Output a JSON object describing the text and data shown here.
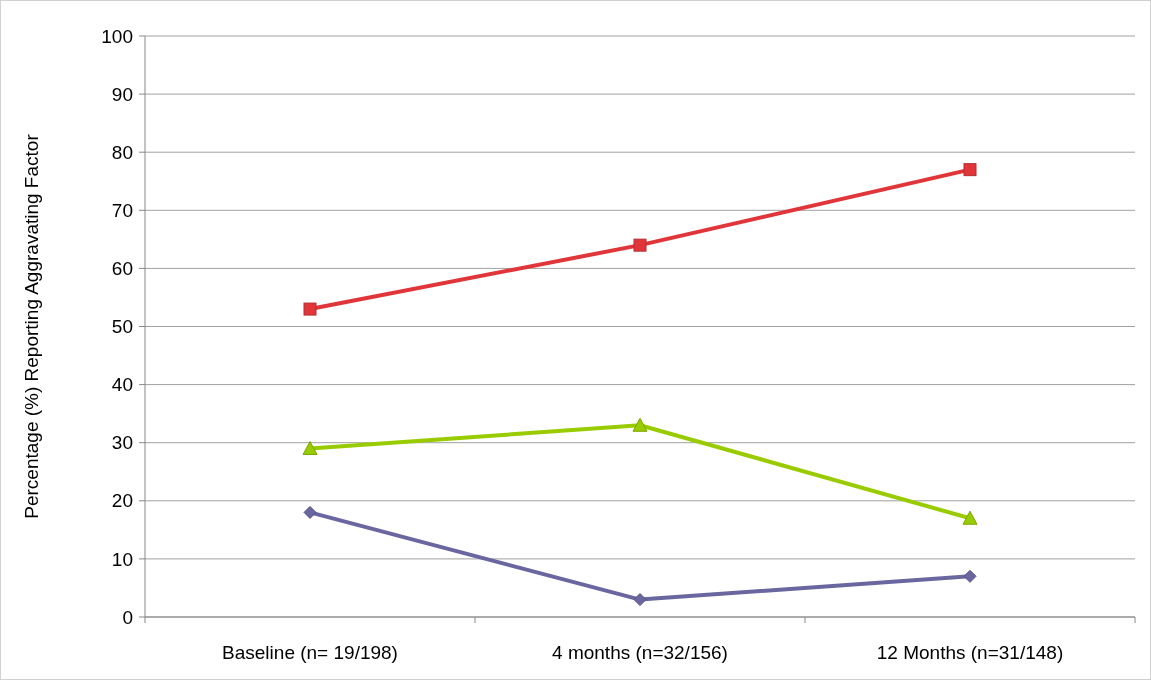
{
  "chart_data": {
    "type": "line",
    "ylabel": "Percentage (%) Reporting Aggravating Factor",
    "categories": [
      "Baseline (n= 19/198)",
      "4 months (n=32/156)",
      "12 Months (n=31/148)"
    ],
    "series": [
      {
        "color": "#e0363a",
        "marker": "square",
        "values": [
          53,
          64,
          77
        ]
      },
      {
        "color": "#99cc00",
        "marker": "triangle",
        "values": [
          29,
          33,
          17
        ]
      },
      {
        "color": "#6a66a0",
        "marker": "diamond",
        "values": [
          18,
          3,
          7
        ]
      }
    ],
    "ylim": [
      0,
      100
    ],
    "yticks": [
      0,
      10,
      20,
      30,
      40,
      50,
      60,
      70,
      80,
      90,
      100
    ],
    "grid": "y",
    "line_style": "solid"
  }
}
